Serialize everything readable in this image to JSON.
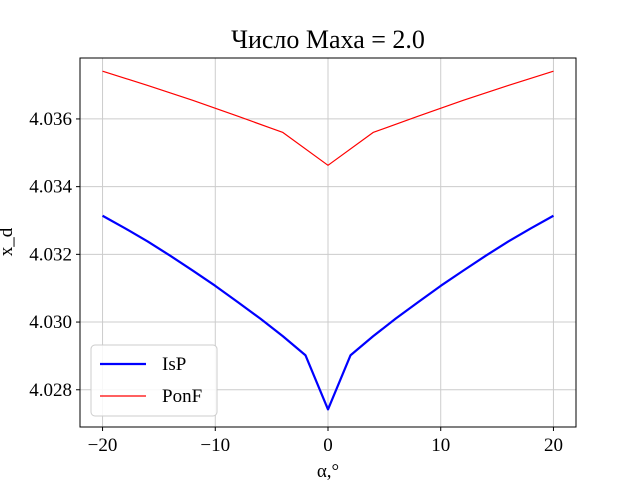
{
  "chart_data": {
    "type": "line",
    "title": "Число Маха = 2.0",
    "xlabel": "α,°",
    "ylabel": "x_d",
    "xlim": [
      -22,
      22
    ],
    "ylim": [
      4.0269,
      4.0378
    ],
    "xticks": [
      -20,
      -10,
      0,
      10,
      20
    ],
    "xtick_labels": [
      "−20",
      "−10",
      "0",
      "10",
      "20"
    ],
    "yticks": [
      4.028,
      4.03,
      4.032,
      4.034,
      4.036
    ],
    "ytick_labels": [
      "4.028",
      "4.030",
      "4.032",
      "4.034",
      "4.036"
    ],
    "grid": true,
    "legend_position": "lower-left",
    "series": [
      {
        "name": "IsP",
        "color": "#0000ff",
        "line_width": "thick",
        "x": [
          -20,
          -18,
          -16,
          -14,
          -12,
          -10,
          -8,
          -6,
          -4,
          -2,
          0,
          2,
          4,
          6,
          8,
          10,
          12,
          14,
          16,
          18,
          20
        ],
        "y": [
          4.03314,
          4.03277,
          4.03238,
          4.03196,
          4.03152,
          4.03107,
          4.03059,
          4.0301,
          4.02958,
          4.02902,
          4.02742,
          4.02902,
          4.02958,
          4.0301,
          4.03059,
          4.03107,
          4.03152,
          4.03196,
          4.03238,
          4.03277,
          4.03314
        ]
      },
      {
        "name": "PonF",
        "color": "#ff0000",
        "line_width": "thin",
        "x": [
          -20,
          -16,
          -12,
          -8,
          -4,
          0,
          4,
          8,
          12,
          16,
          20
        ],
        "y": [
          4.03741,
          4.03699,
          4.03655,
          4.03608,
          4.0356,
          4.03463,
          4.0356,
          4.03608,
          4.03655,
          4.03699,
          4.03741
        ]
      }
    ]
  }
}
